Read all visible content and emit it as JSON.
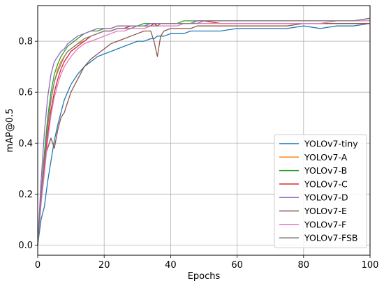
{
  "chart_data": {
    "type": "line",
    "xlabel": "Epochs",
    "ylabel": "mAP@0.5",
    "xlim": [
      0,
      100
    ],
    "ylim": [
      -0.04,
      0.94
    ],
    "xticks": [
      "0",
      "20",
      "40",
      "60",
      "80",
      "100"
    ],
    "yticks": [
      "0.0",
      "0.2",
      "0.4",
      "0.6",
      "0.8"
    ],
    "grid": true,
    "legend_position": "lower-right",
    "x": [
      0,
      1,
      2,
      3,
      4,
      5,
      6,
      7,
      8,
      9,
      10,
      12,
      14,
      16,
      18,
      20,
      22,
      24,
      26,
      28,
      30,
      32,
      34,
      35,
      36,
      37,
      38,
      40,
      42,
      44,
      46,
      48,
      50,
      55,
      60,
      65,
      70,
      75,
      80,
      85,
      90,
      95,
      100
    ],
    "series": [
      {
        "name": "YOLOv7-tiny",
        "color": "#1f77b4",
        "values": [
          0.0,
          0.1,
          0.15,
          0.25,
          0.33,
          0.41,
          0.47,
          0.52,
          0.57,
          0.6,
          0.63,
          0.67,
          0.7,
          0.72,
          0.74,
          0.75,
          0.76,
          0.77,
          0.78,
          0.79,
          0.8,
          0.8,
          0.81,
          0.81,
          0.82,
          0.82,
          0.82,
          0.83,
          0.83,
          0.83,
          0.84,
          0.84,
          0.84,
          0.84,
          0.85,
          0.85,
          0.85,
          0.85,
          0.86,
          0.85,
          0.86,
          0.86,
          0.87
        ]
      },
      {
        "name": "YOLOv7-A",
        "color": "#ff7f0e",
        "values": [
          0.0,
          0.18,
          0.32,
          0.46,
          0.57,
          0.64,
          0.69,
          0.72,
          0.74,
          0.76,
          0.77,
          0.79,
          0.8,
          0.82,
          0.83,
          0.84,
          0.84,
          0.85,
          0.85,
          0.86,
          0.86,
          0.86,
          0.86,
          0.87,
          0.86,
          0.87,
          0.87,
          0.87,
          0.87,
          0.87,
          0.87,
          0.88,
          0.88,
          0.87,
          0.87,
          0.87,
          0.87,
          0.87,
          0.87,
          0.87,
          0.87,
          0.87,
          0.87
        ]
      },
      {
        "name": "YOLOv7-B",
        "color": "#2ca02c",
        "values": [
          0.0,
          0.2,
          0.36,
          0.5,
          0.6,
          0.67,
          0.71,
          0.74,
          0.76,
          0.78,
          0.79,
          0.81,
          0.83,
          0.84,
          0.84,
          0.85,
          0.85,
          0.86,
          0.86,
          0.86,
          0.86,
          0.87,
          0.87,
          0.87,
          0.87,
          0.87,
          0.87,
          0.87,
          0.87,
          0.88,
          0.88,
          0.88,
          0.88,
          0.88,
          0.88,
          0.88,
          0.88,
          0.88,
          0.88,
          0.88,
          0.88,
          0.88,
          0.89
        ]
      },
      {
        "name": "YOLOv7-C",
        "color": "#d62728",
        "values": [
          0.0,
          0.17,
          0.3,
          0.43,
          0.53,
          0.6,
          0.65,
          0.69,
          0.72,
          0.74,
          0.76,
          0.78,
          0.8,
          0.82,
          0.83,
          0.84,
          0.84,
          0.85,
          0.85,
          0.86,
          0.86,
          0.86,
          0.86,
          0.87,
          0.86,
          0.87,
          0.87,
          0.87,
          0.87,
          0.87,
          0.87,
          0.88,
          0.88,
          0.87,
          0.87,
          0.87,
          0.87,
          0.87,
          0.87,
          0.87,
          0.87,
          0.87,
          0.87
        ]
      },
      {
        "name": "YOLOv7-D",
        "color": "#9467bd",
        "values": [
          0.0,
          0.25,
          0.44,
          0.58,
          0.67,
          0.72,
          0.74,
          0.76,
          0.77,
          0.79,
          0.8,
          0.82,
          0.83,
          0.84,
          0.85,
          0.85,
          0.85,
          0.86,
          0.86,
          0.86,
          0.86,
          0.86,
          0.87,
          0.87,
          0.87,
          0.87,
          0.87,
          0.87,
          0.87,
          0.87,
          0.87,
          0.88,
          0.88,
          0.88,
          0.88,
          0.88,
          0.88,
          0.88,
          0.88,
          0.88,
          0.88,
          0.88,
          0.89
        ]
      },
      {
        "name": "YOLOv7-E",
        "color": "#8c564b",
        "values": [
          0.0,
          0.2,
          0.34,
          0.38,
          0.42,
          0.38,
          0.45,
          0.5,
          0.52,
          0.56,
          0.6,
          0.65,
          0.7,
          0.73,
          0.75,
          0.77,
          0.79,
          0.8,
          0.81,
          0.82,
          0.83,
          0.84,
          0.84,
          0.8,
          0.74,
          0.82,
          0.84,
          0.85,
          0.85,
          0.85,
          0.85,
          0.86,
          0.86,
          0.86,
          0.86,
          0.86,
          0.86,
          0.86,
          0.87,
          0.87,
          0.87,
          0.87,
          0.87
        ]
      },
      {
        "name": "YOLOv7-F",
        "color": "#e377c2",
        "values": [
          0.0,
          0.16,
          0.28,
          0.41,
          0.51,
          0.58,
          0.63,
          0.67,
          0.7,
          0.72,
          0.74,
          0.77,
          0.79,
          0.8,
          0.81,
          0.82,
          0.83,
          0.84,
          0.84,
          0.85,
          0.85,
          0.85,
          0.86,
          0.86,
          0.86,
          0.86,
          0.86,
          0.86,
          0.86,
          0.87,
          0.87,
          0.87,
          0.87,
          0.87,
          0.87,
          0.87,
          0.87,
          0.87,
          0.87,
          0.87,
          0.88,
          0.88,
          0.88
        ]
      },
      {
        "name": "YOLOv7-FSB",
        "color": "#7f7f7f",
        "values": [
          0.0,
          0.19,
          0.33,
          0.47,
          0.57,
          0.64,
          0.68,
          0.71,
          0.74,
          0.76,
          0.77,
          0.79,
          0.81,
          0.82,
          0.83,
          0.84,
          0.84,
          0.85,
          0.85,
          0.85,
          0.86,
          0.86,
          0.86,
          0.86,
          0.86,
          0.87,
          0.87,
          0.87,
          0.87,
          0.87,
          0.87,
          0.87,
          0.88,
          0.88,
          0.88,
          0.88,
          0.88,
          0.88,
          0.88,
          0.88,
          0.88,
          0.88,
          0.89
        ]
      }
    ]
  }
}
